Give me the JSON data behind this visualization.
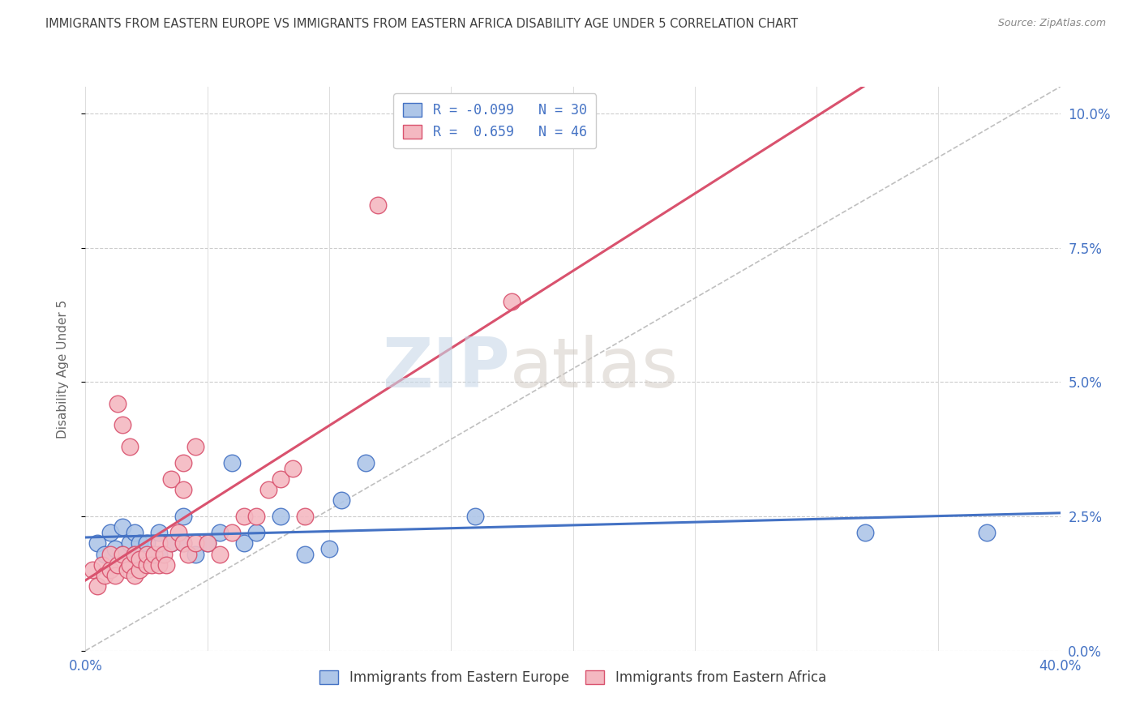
{
  "title": "IMMIGRANTS FROM EASTERN EUROPE VS IMMIGRANTS FROM EASTERN AFRICA DISABILITY AGE UNDER 5 CORRELATION CHART",
  "source": "Source: ZipAtlas.com",
  "ylabel": "Disability Age Under 5",
  "legend_top": [
    {
      "label": "R = -0.099   N = 30",
      "color": "#aec6e8"
    },
    {
      "label": "R =  0.659   N = 46",
      "color": "#f4b8c1"
    }
  ],
  "legend_bottom": [
    {
      "label": "Immigrants from Eastern Europe",
      "color": "#aec6e8"
    },
    {
      "label": "Immigrants from Eastern Africa",
      "color": "#f4b8c1"
    }
  ],
  "background_color": "#ffffff",
  "scatter_blue_color": "#aec6e8",
  "scatter_pink_color": "#f4b8c1",
  "line_blue_color": "#4472c4",
  "line_pink_color": "#d9526e",
  "line_gray_color": "#b0b0b0",
  "title_color": "#404040",
  "axis_label_color": "#4472c4",
  "blue_points_x": [
    0.005,
    0.008,
    0.01,
    0.012,
    0.015,
    0.015,
    0.018,
    0.02,
    0.02,
    0.022,
    0.025,
    0.03,
    0.03,
    0.035,
    0.04,
    0.04,
    0.045,
    0.05,
    0.055,
    0.06,
    0.065,
    0.07,
    0.08,
    0.09,
    0.1,
    0.105,
    0.115,
    0.16,
    0.32,
    0.37
  ],
  "blue_points_y": [
    0.02,
    0.018,
    0.022,
    0.019,
    0.018,
    0.023,
    0.02,
    0.018,
    0.022,
    0.02,
    0.02,
    0.022,
    0.018,
    0.02,
    0.02,
    0.025,
    0.018,
    0.02,
    0.022,
    0.035,
    0.02,
    0.022,
    0.025,
    0.018,
    0.019,
    0.028,
    0.035,
    0.025,
    0.022,
    0.022
  ],
  "pink_points_x": [
    0.003,
    0.005,
    0.007,
    0.008,
    0.01,
    0.01,
    0.012,
    0.013,
    0.015,
    0.015,
    0.017,
    0.018,
    0.02,
    0.02,
    0.022,
    0.022,
    0.025,
    0.025,
    0.027,
    0.028,
    0.03,
    0.03,
    0.032,
    0.033,
    0.035,
    0.035,
    0.038,
    0.04,
    0.04,
    0.042,
    0.045,
    0.05,
    0.055,
    0.06,
    0.065,
    0.07,
    0.075,
    0.08,
    0.085,
    0.09,
    0.013,
    0.018,
    0.04,
    0.045,
    0.12,
    0.175
  ],
  "pink_points_y": [
    0.015,
    0.012,
    0.016,
    0.014,
    0.015,
    0.018,
    0.014,
    0.016,
    0.042,
    0.018,
    0.015,
    0.016,
    0.014,
    0.018,
    0.015,
    0.017,
    0.016,
    0.018,
    0.016,
    0.018,
    0.016,
    0.02,
    0.018,
    0.016,
    0.02,
    0.032,
    0.022,
    0.02,
    0.03,
    0.018,
    0.02,
    0.02,
    0.018,
    0.022,
    0.025,
    0.025,
    0.03,
    0.032,
    0.034,
    0.025,
    0.046,
    0.038,
    0.035,
    0.038,
    0.083,
    0.065
  ],
  "watermark_zip": "ZIP",
  "watermark_atlas": "atlas",
  "xlim": [
    0.0,
    0.4
  ],
  "ylim": [
    0.0,
    0.105
  ],
  "x_ticks": [
    0.0,
    0.05,
    0.1,
    0.15,
    0.2,
    0.25,
    0.3,
    0.35,
    0.4
  ],
  "y_ticks": [
    0.0,
    0.025,
    0.05,
    0.075,
    0.1
  ]
}
